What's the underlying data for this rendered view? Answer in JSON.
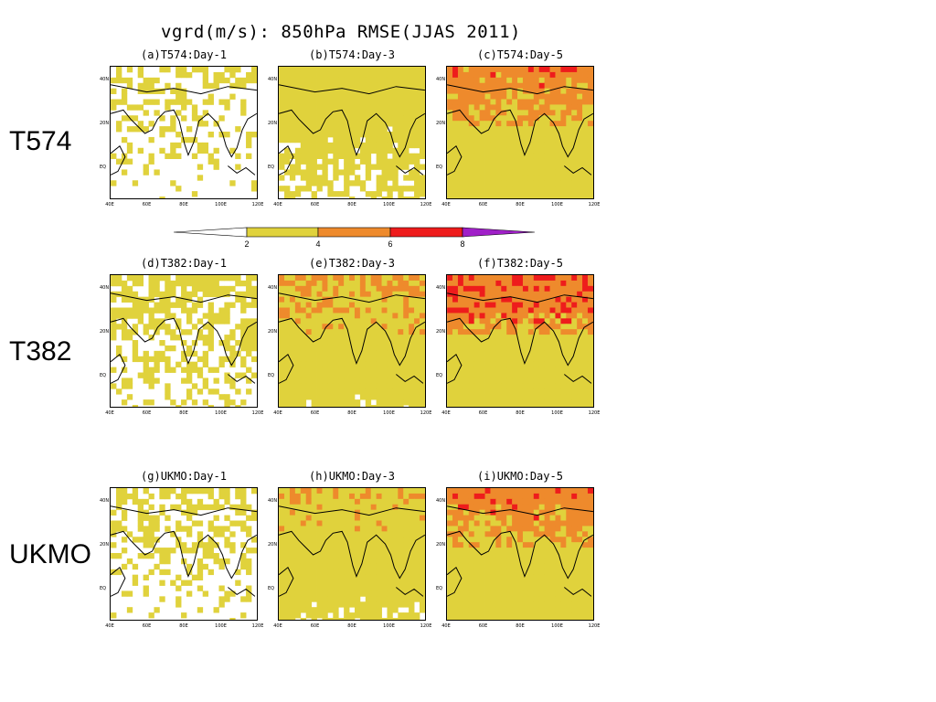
{
  "title": "vgrd(m/s): 850hPa RMSE(JJAS 2011)",
  "row_labels": [
    "T574",
    "T382",
    "UKMO"
  ],
  "panels": [
    {
      "label": "(a)T574:Day-1",
      "intensity": 0.22
    },
    {
      "label": "(b)T574:Day-3",
      "intensity": 0.45
    },
    {
      "label": "(c)T574:Day-5",
      "intensity": 0.7
    },
    {
      "label": "(d)T382:Day-1",
      "intensity": 0.3
    },
    {
      "label": "(e)T382:Day-3",
      "intensity": 0.62
    },
    {
      "label": "(f)T382:Day-5",
      "intensity": 0.8
    },
    {
      "label": "(g)UKMO:Day-1",
      "intensity": 0.25
    },
    {
      "label": "(h)UKMO:Day-3",
      "intensity": 0.55
    },
    {
      "label": "(i)UKMO:Day-5",
      "intensity": 0.72
    }
  ],
  "x_ticks": [
    "40E",
    "60E",
    "80E",
    "100E",
    "120E"
  ],
  "y_ticks": [
    "40N",
    "20N",
    "EQ"
  ],
  "colorbar": {
    "labels": [
      "2",
      "4",
      "6",
      "8"
    ],
    "colors": [
      "#ffffff",
      "#e0d23c",
      "#ee8a2c",
      "#ee1c1c",
      "#a020c8"
    ]
  },
  "colors": {
    "low": "#e0d23c",
    "mid": "#ee8a2c",
    "high": "#ee1c1c"
  }
}
